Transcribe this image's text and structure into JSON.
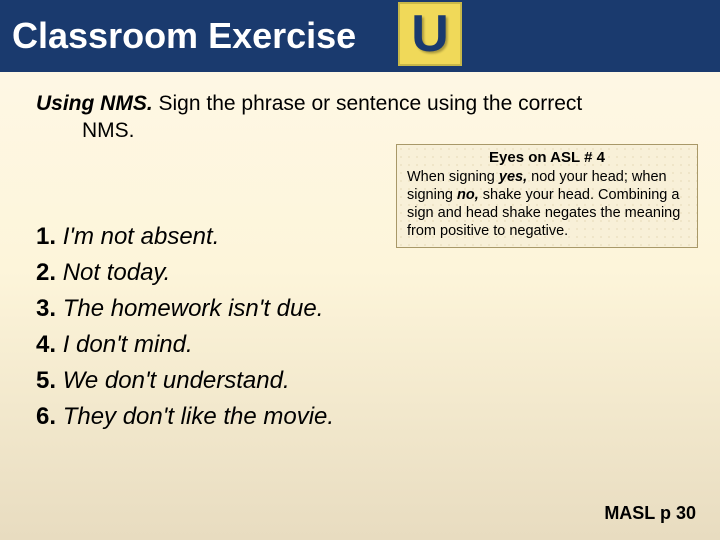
{
  "header": {
    "title": "Classroom Exercise",
    "badge_letter": "U"
  },
  "instructions": {
    "lead": "Using NMS.",
    "rest_line1": " Sign the phrase or sentence using the correct",
    "rest_line2": "NMS."
  },
  "callout": {
    "title": "Eyes on ASL # 4",
    "body_parts": {
      "p1": "When signing ",
      "yes": "yes,",
      "p2": " nod your  head; when signing ",
      "no": "no,",
      "p3": " shake your head. Combining a sign and head shake negates the meaning from positive to negative."
    }
  },
  "list": [
    {
      "num": "1.",
      "text": "I'm not absent."
    },
    {
      "num": "2.",
      "text": "Not today."
    },
    {
      "num": "3.",
      "text": "The homework isn't due."
    },
    {
      "num": "4.",
      "text": "I don't mind."
    },
    {
      "num": "5.",
      "text": "We don't understand."
    },
    {
      "num": "6.",
      "text": "They don't like the movie."
    }
  ],
  "footer": "MASL p 30",
  "colors": {
    "header_bg": "#1a3a6e",
    "badge_bg": "#f0d959",
    "page_bg_top": "#fef8e8",
    "page_bg_bottom": "#e8dcc0"
  }
}
